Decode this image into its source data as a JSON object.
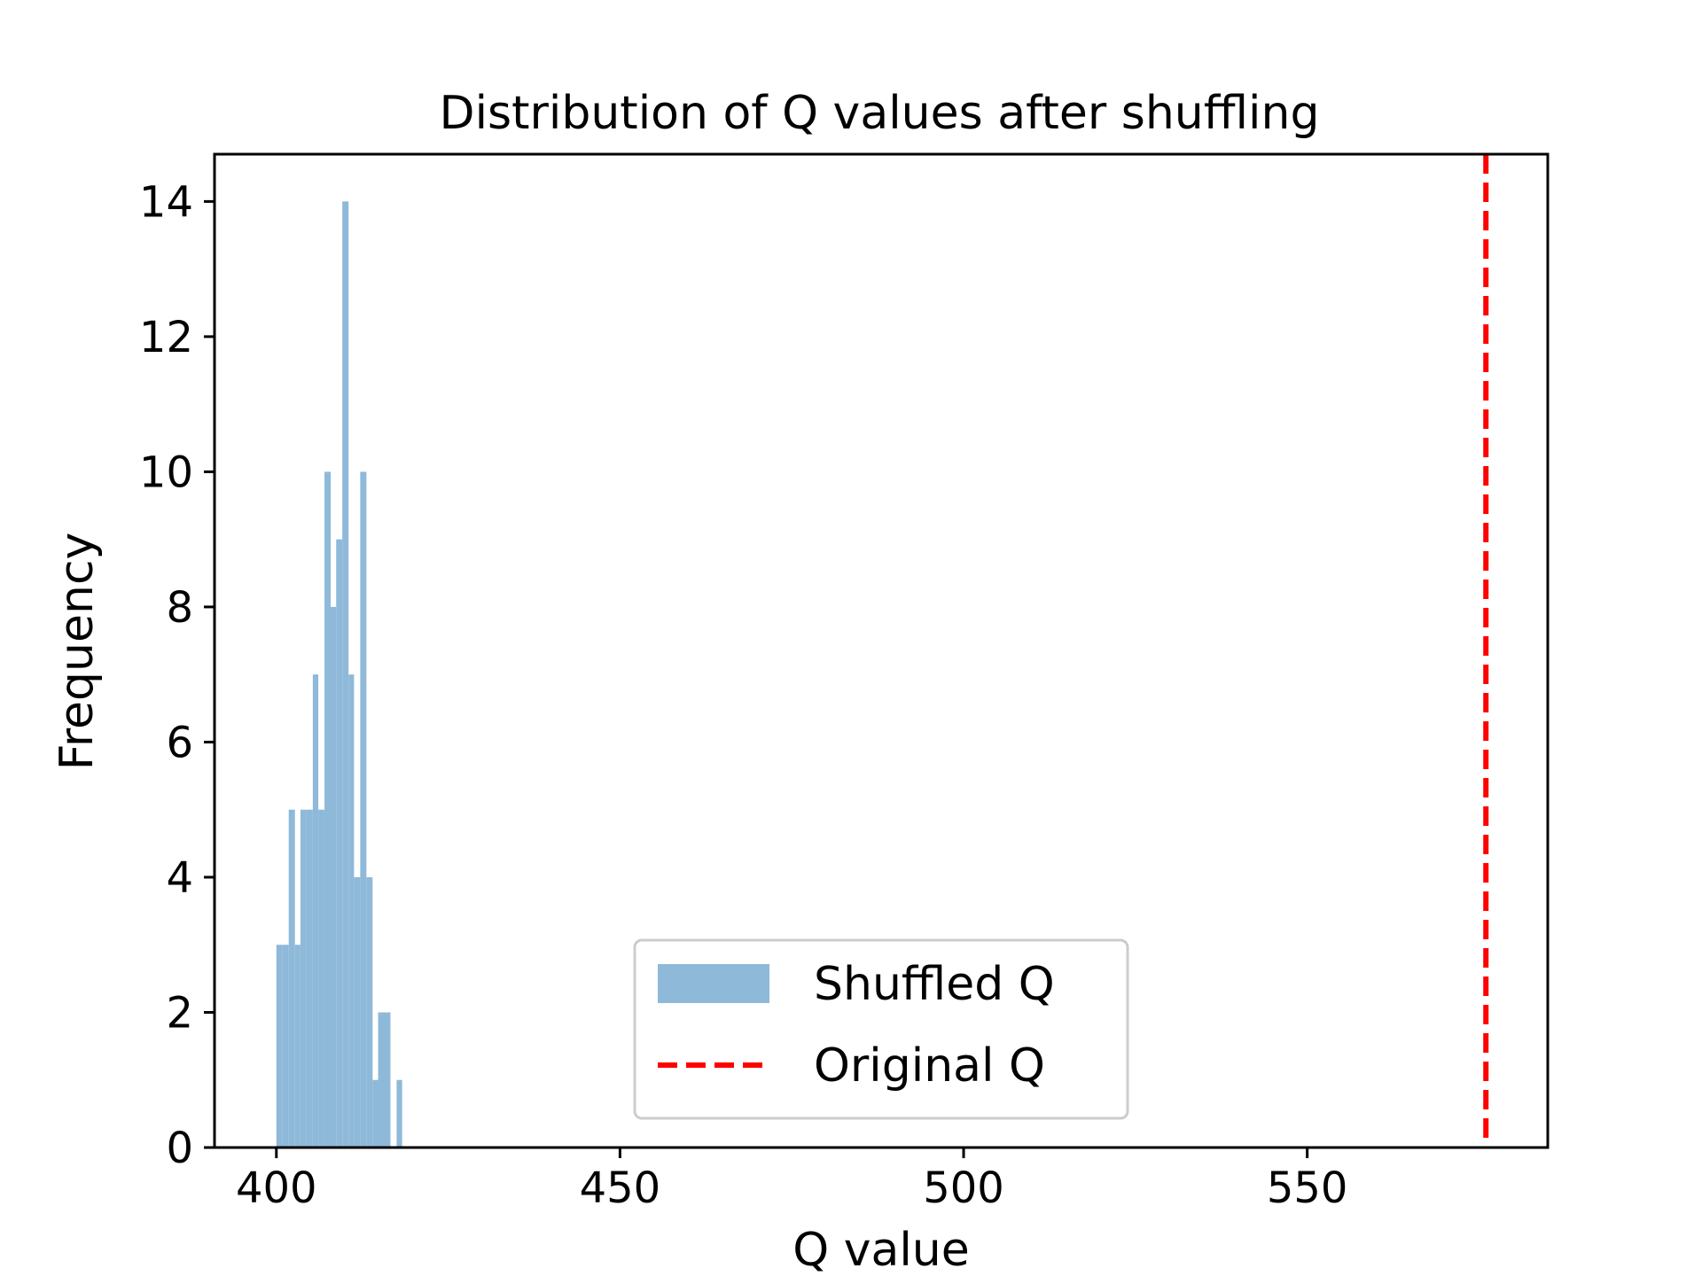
{
  "chart_data": {
    "type": "bar",
    "title": "Distribution of Q values after shuffling",
    "xlabel": "Q value",
    "ylabel": "Frequency",
    "xlim": [
      391,
      585
    ],
    "ylim": [
      0,
      14.7
    ],
    "xticks": [
      400,
      450,
      500,
      550
    ],
    "yticks": [
      0,
      2,
      4,
      6,
      8,
      10,
      12,
      14
    ],
    "grid": false,
    "legend_position": "lower center",
    "series": [
      {
        "name": "Shuffled Q",
        "kind": "histogram",
        "color": "#8fb9d9",
        "bins": [
          {
            "x0": 400.0,
            "x1": 400.9,
            "count": 3
          },
          {
            "x0": 400.9,
            "x1": 401.8,
            "count": 3
          },
          {
            "x0": 401.8,
            "x1": 402.7,
            "count": 5
          },
          {
            "x0": 402.7,
            "x1": 403.5,
            "count": 3
          },
          {
            "x0": 403.5,
            "x1": 404.4,
            "count": 5
          },
          {
            "x0": 404.4,
            "x1": 405.3,
            "count": 5
          },
          {
            "x0": 405.3,
            "x1": 406.1,
            "count": 7
          },
          {
            "x0": 406.1,
            "x1": 407.0,
            "count": 5
          },
          {
            "x0": 407.0,
            "x1": 407.9,
            "count": 10
          },
          {
            "x0": 407.9,
            "x1": 408.7,
            "count": 8
          },
          {
            "x0": 408.7,
            "x1": 409.6,
            "count": 9
          },
          {
            "x0": 409.6,
            "x1": 410.5,
            "count": 14
          },
          {
            "x0": 410.5,
            "x1": 411.3,
            "count": 7
          },
          {
            "x0": 411.3,
            "x1": 412.2,
            "count": 4
          },
          {
            "x0": 412.2,
            "x1": 413.1,
            "count": 10
          },
          {
            "x0": 413.1,
            "x1": 414.0,
            "count": 4
          },
          {
            "x0": 414.0,
            "x1": 414.8,
            "count": 1
          },
          {
            "x0": 414.8,
            "x1": 415.7,
            "count": 2
          },
          {
            "x0": 415.7,
            "x1": 416.6,
            "count": 2
          },
          {
            "x0": 416.6,
            "x1": 417.5,
            "count": 0
          },
          {
            "x0": 417.5,
            "x1": 418.3,
            "count": 1
          }
        ]
      },
      {
        "name": "Original Q",
        "kind": "vline",
        "color": "#ff0000",
        "linestyle": "dashed",
        "x": 576
      }
    ]
  }
}
